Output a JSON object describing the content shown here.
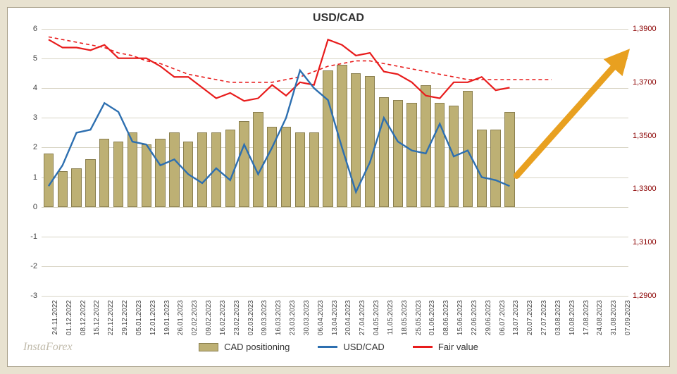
{
  "chart": {
    "title": "USD/CAD",
    "type": "bar+line",
    "background_color": "#ffffff",
    "outer_background_color": "#e8e2d0",
    "grid_color": "#d8d4c4",
    "border_color": "#a8a08a",
    "title_fontsize": 16,
    "label_fontsize": 11,
    "x_label_fontsize": 10,
    "left_axis": {
      "min": -3,
      "max": 6,
      "ticks": [
        -3,
        -2,
        -1,
        0,
        1,
        2,
        3,
        4,
        5,
        6
      ],
      "color": "#444444"
    },
    "right_axis": {
      "min": 1.29,
      "max": 1.39,
      "ticks": [
        1.29,
        1.31,
        1.33,
        1.35,
        1.37,
        1.39
      ],
      "tick_labels": [
        "1,2900",
        "1,3100",
        "1,3300",
        "1,3500",
        "1,3700",
        "1,3900"
      ],
      "color": "#8b0000"
    },
    "x_categories": [
      "24.11.2022",
      "01.12.2022",
      "08.12.2022",
      "15.12.2022",
      "22.12.2022",
      "29.12.2022",
      "05.01.2023",
      "12.01.2023",
      "19.01.2023",
      "26.01.2023",
      "02.02.2023",
      "09.02.2023",
      "16.02.2023",
      "23.02.2023",
      "02.03.2023",
      "09.03.2023",
      "16.03.2023",
      "23.03.2023",
      "30.03.2023",
      "06.04.2023",
      "13.04.2023",
      "20.04.2023",
      "27.04.2023",
      "04.05.2023",
      "11.05.2023",
      "18.05.2023",
      "25.05.2023",
      "01.06.2023",
      "08.06.2023",
      "15.06.2023",
      "22.06.2023",
      "29.06.2023",
      "06.07.2023",
      "13.07.2023",
      "20.07.2023",
      "27.07.2023",
      "03.08.2023",
      "10.08.2023",
      "17.08.2023",
      "24.08.2023",
      "31.08.2023",
      "07.09.2023"
    ],
    "bars": {
      "name": "CAD positioning",
      "color": "#bdb074",
      "border_color": "#8a7f4f",
      "width": 0.72,
      "values": [
        1.8,
        1.2,
        1.3,
        1.6,
        2.3,
        2.2,
        2.5,
        2.1,
        2.3,
        2.5,
        2.2,
        2.5,
        2.5,
        2.6,
        2.9,
        3.2,
        2.7,
        2.7,
        2.5,
        2.5,
        4.6,
        4.8,
        4.5,
        4.4,
        3.7,
        3.6,
        3.5,
        4.1,
        3.5,
        3.4,
        3.9,
        2.6,
        2.6,
        3.2
      ]
    },
    "line_usdcad": {
      "name": "USD/CAD",
      "color": "#2d6fb0",
      "width": 2.4,
      "values": [
        0.7,
        1.4,
        2.5,
        2.6,
        3.5,
        3.2,
        2.2,
        2.1,
        1.4,
        1.6,
        1.1,
        0.8,
        1.3,
        0.9,
        2.1,
        1.1,
        2.0,
        3.0,
        4.6,
        4.0,
        3.6,
        2.0,
        0.5,
        1.5,
        3.0,
        2.2,
        1.9,
        1.8,
        2.8,
        1.7,
        1.9,
        1.0,
        0.9,
        0.7
      ]
    },
    "line_fair": {
      "name": "Fair value",
      "color": "#e81c1c",
      "width": 2.2,
      "right_axis": true,
      "values": [
        1.386,
        1.383,
        1.383,
        1.382,
        1.384,
        1.379,
        1.379,
        1.379,
        1.376,
        1.372,
        1.372,
        1.368,
        1.364,
        1.366,
        1.363,
        1.364,
        1.369,
        1.365,
        1.37,
        1.369,
        1.386,
        1.384,
        1.38,
        1.381,
        1.374,
        1.373,
        1.37,
        1.365,
        1.364,
        1.37,
        1.37,
        1.372,
        1.367,
        1.368
      ]
    },
    "line_fair_dashed": {
      "name": "Fair value trend",
      "color": "#e81c1c",
      "width": 1.6,
      "dash": "5,4",
      "right_axis": true,
      "values": [
        1.387,
        1.386,
        1.385,
        1.384,
        1.383,
        1.381,
        1.38,
        1.378,
        1.377,
        1.375,
        1.373,
        1.372,
        1.371,
        1.37,
        1.37,
        1.37,
        1.37,
        1.371,
        1.372,
        1.374,
        1.376,
        1.377,
        1.378,
        1.378,
        1.377,
        1.376,
        1.375,
        1.374,
        1.373,
        1.372,
        1.371,
        1.371,
        1.371,
        1.371,
        1.371,
        1.371,
        1.371
      ]
    },
    "arrow": {
      "color": "#e8a020",
      "from_index": 33.5,
      "to_index": 41,
      "from_right_val": 1.335,
      "to_right_val": 1.379,
      "stroke_width": 9
    },
    "legend": {
      "items": [
        {
          "type": "bar",
          "label": "CAD positioning",
          "color": "#bdb074",
          "border": "#8a7f4f"
        },
        {
          "type": "line",
          "label": "USD/CAD",
          "color": "#2d6fb0"
        },
        {
          "type": "line",
          "label": "Fair value",
          "color": "#e81c1c"
        }
      ]
    },
    "watermark": "InstaForex"
  }
}
